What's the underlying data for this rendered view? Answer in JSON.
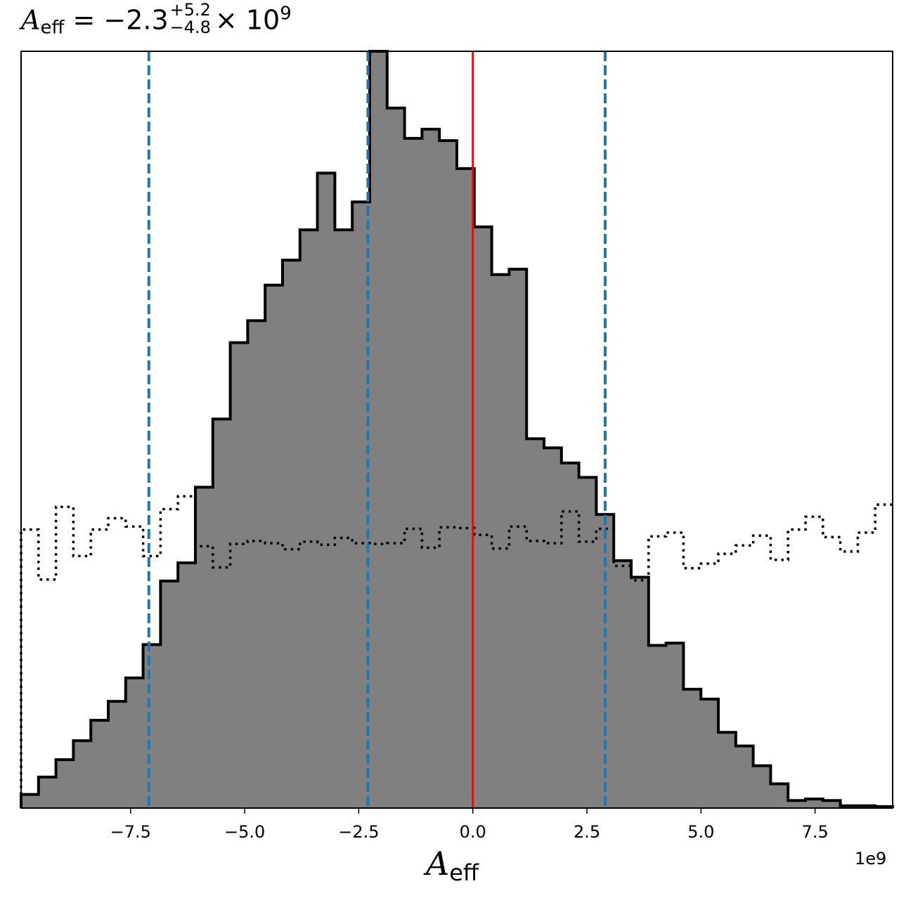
{
  "title": {
    "symbol": "A",
    "subscript": "eff",
    "equals": " = ",
    "median": "−2.3",
    "upper": "+5.2",
    "lower": "−4.8",
    "times": "× 10",
    "exponent": "9"
  },
  "chart_data": {
    "type": "histogram",
    "xlabel_symbol": "A",
    "xlabel_subscript": "eff",
    "x_offset_label": "1e9",
    "xlim": [
      -9.9,
      9.2
    ],
    "ylim": [
      0,
      1000
    ],
    "x_ticks": [
      -7.5,
      -5.0,
      -2.5,
      0.0,
      2.5,
      5.0,
      7.5
    ],
    "x_tick_labels": [
      "−7.5",
      "−5.0",
      "−2.5",
      "0.0",
      "2.5",
      "5.0",
      "7.5"
    ],
    "y_ticks_shown": false,
    "bin_edges": [
      -9.9,
      -9.518,
      -9.136,
      -8.754,
      -8.372,
      -7.99,
      -7.608,
      -7.226,
      -6.844,
      -6.462,
      -6.08,
      -5.698,
      -5.316,
      -4.934,
      -4.552,
      -4.17,
      -3.788,
      -3.406,
      -3.024,
      -2.642,
      -2.26,
      -1.878,
      -1.496,
      -1.114,
      -0.732,
      -0.35,
      0.032,
      0.414,
      0.796,
      1.178,
      1.56,
      1.942,
      2.324,
      2.706,
      3.088,
      3.47,
      3.852,
      4.234,
      4.616,
      4.998,
      5.38,
      5.762,
      6.144,
      6.526,
      6.908,
      7.29,
      7.672,
      8.054,
      8.436,
      8.818,
      9.2
    ],
    "series": [
      {
        "label": "posterior",
        "style": "filled-step",
        "fill": "#808080",
        "edge": "#000000",
        "values": [
          18,
          41,
          64,
          89,
          116,
          141,
          172,
          216,
          300,
          324,
          424,
          514,
          615,
          644,
          691,
          724,
          764,
          839,
          764,
          801,
          1000,
          925,
          885,
          897,
          882,
          845,
          768,
          705,
          712,
          488,
          476,
          456,
          437,
          388,
          327,
          305,
          215,
          218,
          157,
          144,
          100,
          82,
          56,
          32,
          10,
          12,
          10,
          3,
          3,
          2
        ]
      },
      {
        "label": "prior",
        "style": "dotted-step",
        "edge": "#000000",
        "values": [
          368,
          302,
          398,
          333,
          368,
          383,
          372,
          333,
          395,
          412,
          346,
          318,
          349,
          353,
          350,
          342,
          352,
          348,
          357,
          350,
          349,
          350,
          369,
          344,
          371,
          370,
          361,
          343,
          372,
          353,
          350,
          392,
          352,
          369,
          320,
          301,
          359,
          364,
          317,
          323,
          336,
          347,
          360,
          328,
          368,
          385,
          358,
          339,
          364,
          401
        ]
      }
    ],
    "vlines": [
      {
        "label": "lower",
        "x": -7.1,
        "color": "#1f77b4",
        "style": "dashed"
      },
      {
        "label": "median",
        "x": -2.3,
        "color": "#1f77b4",
        "style": "dashed"
      },
      {
        "label": "upper",
        "x": 2.9,
        "color": "#1f77b4",
        "style": "dashed"
      },
      {
        "label": "injection",
        "x": 0.0,
        "color": "#ff0000",
        "style": "solid"
      }
    ]
  }
}
